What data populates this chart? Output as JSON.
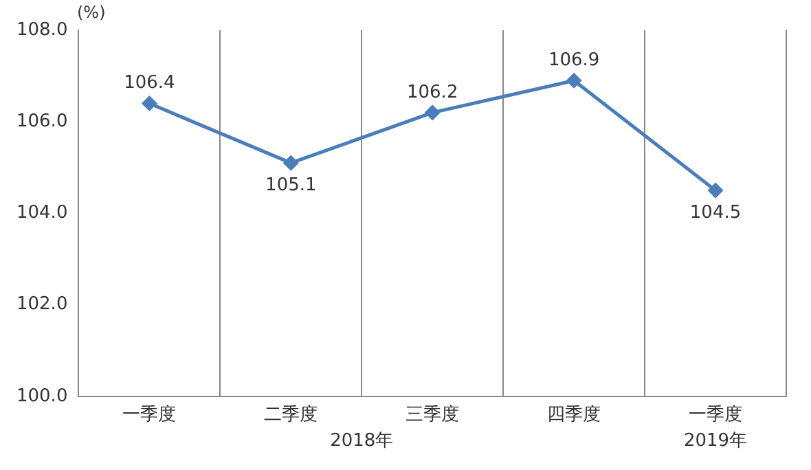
{
  "chart_data": {
    "type": "line",
    "ylabel": "(%)",
    "categories": [
      "一季度",
      "二季度",
      "三季度",
      "四季度",
      "一季度"
    ],
    "series": [
      {
        "color": "#4a7ebb",
        "values": [
          106.4,
          105.1,
          106.2,
          106.9,
          104.5
        ]
      }
    ],
    "ylim": [
      100,
      108
    ],
    "yticks": [
      {
        "value": 100,
        "label": "100.0"
      },
      {
        "value": 102,
        "label": "102.0"
      },
      {
        "value": 104,
        "label": "104.0"
      },
      {
        "value": 106,
        "label": "106.0"
      },
      {
        "value": 108,
        "label": "108.0"
      }
    ],
    "annotations": [
      "2018年",
      "2019年"
    ],
    "grid": "x",
    "marker": "diamond",
    "line_style": "solid",
    "data_labels": true,
    "legend": false
  }
}
